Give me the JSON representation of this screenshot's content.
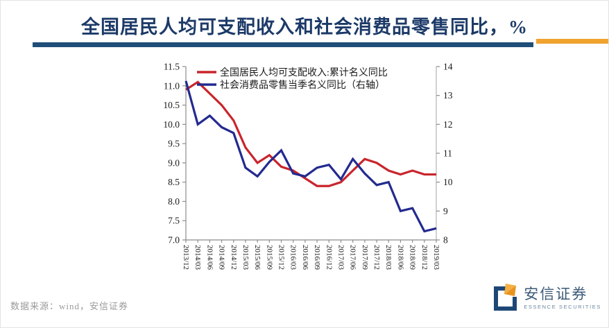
{
  "title": {
    "text": "全国居民人均可支配收入和社会消费品零售同比，%"
  },
  "footer": {
    "source": "数据来源：wind，安信证券"
  },
  "logo": {
    "name": "安信证券",
    "subtitle": "ESSENCE SECURITIES"
  },
  "colors": {
    "title_navy": "#1c3a68",
    "rule_blue": "#1f4e79",
    "rule_orange": "#f0a32f",
    "income_line": "#c9252c",
    "retail_line": "#232a8f",
    "axis_gray": "#8c8c8c"
  },
  "chart_data": {
    "type": "line",
    "x": [
      "2013/12",
      "2014/03",
      "2014/06",
      "2014/09",
      "2014/12",
      "2015/03",
      "2015/06",
      "2015/09",
      "2015/12",
      "2016/03",
      "2016/06",
      "2016/09",
      "2016/12",
      "2017/03",
      "2017/06",
      "2017/09",
      "2017/12",
      "2018/03",
      "2018/06",
      "2018/09",
      "2018/12",
      "2019/03"
    ],
    "series": [
      {
        "name": "全国居民人均可支配收入:累计名义同比",
        "axis": "left",
        "color": "#c9252c",
        "values": [
          10.9,
          11.1,
          10.8,
          10.5,
          10.1,
          9.4,
          9.0,
          9.2,
          8.9,
          8.8,
          8.6,
          8.4,
          8.4,
          8.5,
          8.8,
          9.1,
          9.0,
          8.8,
          8.7,
          8.8,
          8.7,
          8.7
        ]
      },
      {
        "name": "社会消费品零售当季名义同比（右轴）",
        "axis": "right",
        "color": "#232a8f",
        "values": [
          13.5,
          12.0,
          12.3,
          11.9,
          11.7,
          10.5,
          10.2,
          10.7,
          11.1,
          10.3,
          10.2,
          10.5,
          10.6,
          10.1,
          10.8,
          10.3,
          9.9,
          10.0,
          9.0,
          9.1,
          8.3,
          8.4
        ]
      }
    ],
    "left_axis": {
      "min": 7.0,
      "max": 11.5,
      "step": 0.5,
      "decimals": 1
    },
    "right_axis": {
      "min": 8,
      "max": 14,
      "step": 1,
      "decimals": 0
    },
    "legend_position": "top-left-inside",
    "grid": false,
    "title": "全国居民人均可支配收入和社会消费品零售同比，%",
    "xlabel": "",
    "ylabel_left": "%",
    "ylabel_right": "%"
  }
}
